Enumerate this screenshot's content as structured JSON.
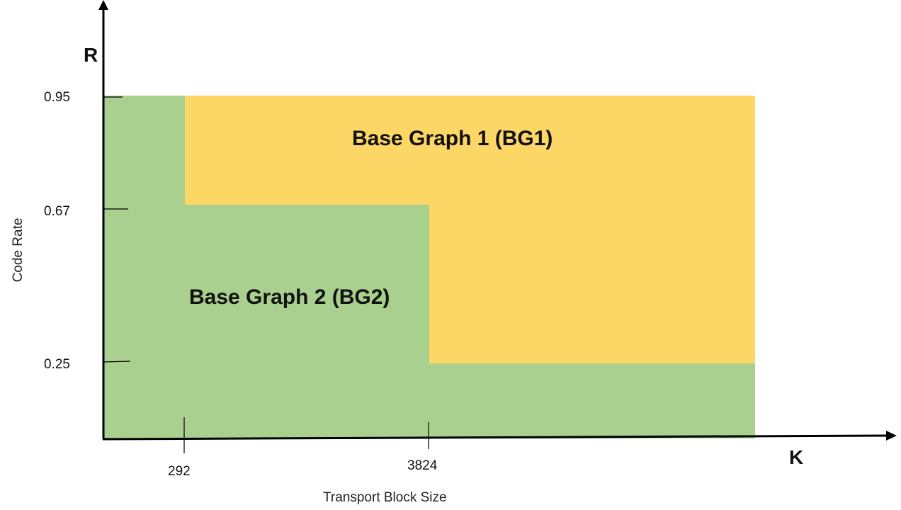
{
  "diagram": {
    "y_axis_letter": "R",
    "x_axis_letter": "K",
    "y_axis_title": "Code Rate",
    "x_axis_title": "Transport Block Size",
    "y_ticks": [
      "0.95",
      "0.67",
      "0.25"
    ],
    "x_ticks": [
      "292",
      "3824"
    ],
    "regions": {
      "bg1": {
        "label": "Base Graph 1 (BG1)",
        "color": "#fdd766"
      },
      "bg2": {
        "label": "Base Graph 2 (BG2)",
        "color": "#a9d08e"
      }
    }
  }
}
